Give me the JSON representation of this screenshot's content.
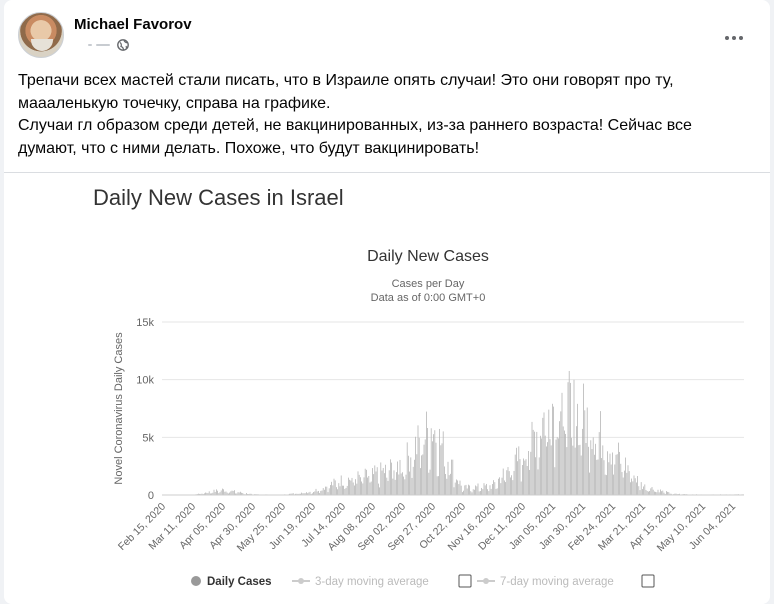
{
  "post": {
    "author": "Michael Favorov",
    "text": [
      "Трепачи всех мастей стали писать, что в Израиле опять случаи! Это они говорят про ту,",
      "маааленькую точечку, справа на графике.",
      "Случаи гл образом среди детей, не вакцинированных, из-за раннего возраста! Сейчас все",
      "думают, что с ними делать. Похоже, что будут вакцинировать!"
    ],
    "image_title": "Daily New Cases in Israel"
  },
  "icons": {
    "avatar": "avatar",
    "privacy": "globe-icon",
    "menu": "more-horizontal-icon"
  },
  "chart_data": {
    "type": "bar",
    "title": "Daily New Cases",
    "subtitle": "Cases per Day",
    "subtitle2": "Data as of 0:00 GMT+0",
    "ylabel": "Novel Coronavirus Daily Cases",
    "xlabel": "",
    "ylim": [
      0,
      15000
    ],
    "yticks": [
      "0",
      "5k",
      "10k",
      "15k"
    ],
    "ytick_values": [
      0,
      5000,
      10000,
      15000
    ],
    "xticks": [
      "Feb 15, 2020",
      "Mar 11, 2020",
      "Apr 05, 2020",
      "Apr 30, 2020",
      "May 25, 2020",
      "Jun 19, 2020",
      "Jul 14, 2020",
      "Aug 08, 2020",
      "Sep 02, 2020",
      "Sep 27, 2020",
      "Oct 22, 2020",
      "Nov 16, 2020",
      "Dec 11, 2020",
      "Jan 05, 2021",
      "Jan 30, 2021",
      "Feb 24, 2021",
      "Mar 21, 2021",
      "Apr 15, 2021",
      "May 10, 2021",
      "Jun 04, 2021"
    ],
    "grid": true,
    "bar_color": "#b5b5b5",
    "series": [
      {
        "name": "Daily Cases",
        "approx_values_by_xtick": [
          0,
          10,
          450,
          60,
          20,
          300,
          1300,
          1700,
          2700,
          6000,
          600,
          800,
          3500,
          8000,
          7000,
          4000,
          800,
          100,
          30,
          50
        ]
      }
    ],
    "legend": [
      "Daily Cases",
      "3-day moving average",
      "7-day moving average"
    ],
    "legend_position": "bottom"
  }
}
